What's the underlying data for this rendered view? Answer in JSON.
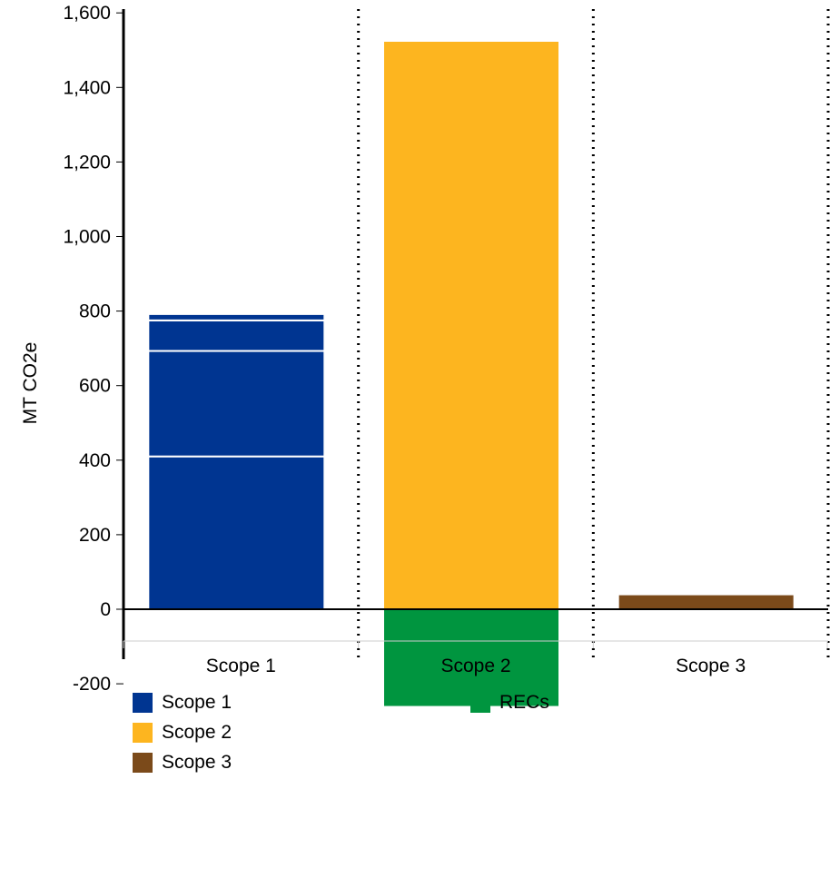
{
  "chart_data": {
    "type": "bar",
    "stacked": true,
    "ylabel": "MT CO2e",
    "ylim": [
      -320,
      1620
    ],
    "yticks": [
      -200,
      0,
      200,
      400,
      600,
      800,
      1000,
      1200,
      1400,
      1600
    ],
    "ytick_labels": [
      "-200",
      "0",
      "200",
      "400",
      "600",
      "800",
      "1,000",
      "1,200",
      "1,400",
      "1,600"
    ],
    "categories": [
      "Scope 1",
      "Scope 2",
      "Scope 3"
    ],
    "bars": [
      {
        "category": "Scope 1",
        "series": "Scope 1",
        "color": "#003591",
        "segments": [
          410,
          283,
          82,
          17
        ]
      },
      {
        "category": "Scope 2",
        "series": "Scope 2",
        "color": "#FDB51F",
        "segments": [
          1525
        ]
      },
      {
        "category": "Scope 2",
        "series": "RECs",
        "color": "#00953F",
        "segments": [
          -262
        ]
      },
      {
        "category": "Scope 3",
        "series": "Scope 3",
        "color": "#7B4A1A",
        "segments": [
          40
        ]
      }
    ],
    "legend": [
      {
        "name": "Scope 1",
        "color": "#003591"
      },
      {
        "name": "Scope 2",
        "color": "#FDB51F"
      },
      {
        "name": "Scope 3",
        "color": "#7B4A1A"
      },
      {
        "name": "RECs",
        "color": "#00953F"
      }
    ],
    "legend_position": "bottom",
    "grid": false
  }
}
